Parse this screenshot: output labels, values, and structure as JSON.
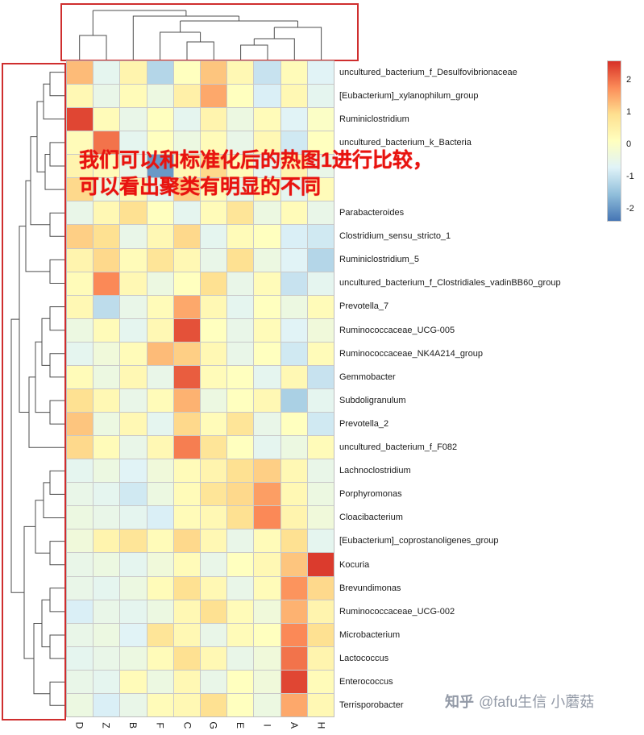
{
  "annotation": {
    "line1": "我们可以和标准化后的热图1进行比较，",
    "line2": "可以看出聚类有明显的不同",
    "color": "#e8130f"
  },
  "watermark": {
    "brand": "知乎",
    "handle": "@fafu生信 小蘑菇"
  },
  "colors": {
    "highlight_box_red": "#cf2e2e",
    "annotation_red": "#e8130f",
    "watermark_gray": "#9299a6",
    "dendrogram_line": "#4d4d4d"
  },
  "chart_data": {
    "type": "heatmap",
    "title": "",
    "clustered": {
      "rows": true,
      "columns": true
    },
    "columns": [
      "D",
      "Z",
      "B",
      "F",
      "C",
      "G",
      "E",
      "I",
      "A",
      "H"
    ],
    "rows": [
      "uncultured_bacterium_f_Desulfovibrionaceae",
      "[Eubacterium]_xylanophilum_group",
      "Ruminiclostridium",
      "uncultured_bacterium_k_Bacteria",
      "",
      "",
      "Parabacteroides",
      "Clostridium_sensu_stricto_1",
      "Ruminiclostridium_5",
      "uncultured_bacterium_f_Clostridiales_vadinBB60_group",
      "Prevotella_7",
      "Ruminococcaceae_UCG-005",
      "Ruminococcaceae_NK4A214_group",
      "Gemmobacter",
      "Subdoligranulum",
      "Prevotella_2",
      "uncultured_bacterium_f_F082",
      "Lachnoclostridium",
      "Porphyromonas",
      "Cloacibacterium",
      "[Eubacterium]_coprostanoligenes_group",
      "Kocuria",
      "Brevundimonas",
      "Ruminococcaceae_UCG-002",
      "Microbacterium",
      "Lactococcus",
      "Enterococcus",
      "Terrisporobacter"
    ],
    "values": [
      [
        1.3,
        -0.6,
        0.4,
        -1.2,
        0.1,
        1.2,
        0.3,
        -1.0,
        0.2,
        -0.7
      ],
      [
        0.3,
        -0.5,
        0.2,
        -0.4,
        0.5,
        1.5,
        0.1,
        -0.8,
        0.3,
        -0.6
      ],
      [
        2.4,
        0.2,
        -0.5,
        0.1,
        -0.6,
        0.4,
        -0.4,
        0.2,
        -0.7,
        0.0
      ],
      [
        0.2,
        2.0,
        -0.6,
        0.1,
        -0.4,
        0.2,
        -0.5,
        0.3,
        -0.9,
        0.1
      ],
      [
        0.4,
        0.2,
        -0.5,
        -2.0,
        0.3,
        1.0,
        0.2,
        -0.6,
        0.4,
        -0.5
      ],
      [
        1.0,
        -0.4,
        0.3,
        -0.6,
        1.1,
        0.2,
        -0.5,
        0.3,
        -0.6,
        0.2
      ],
      [
        -0.5,
        0.3,
        0.9,
        0.1,
        -0.6,
        0.2,
        0.8,
        -0.4,
        0.2,
        -0.5
      ],
      [
        1.1,
        0.9,
        -0.5,
        0.3,
        1.0,
        -0.6,
        0.2,
        0.1,
        -0.8,
        -0.9
      ],
      [
        0.4,
        1.0,
        0.2,
        0.8,
        0.3,
        -0.5,
        0.9,
        -0.4,
        -0.7,
        -1.2
      ],
      [
        0.2,
        1.8,
        0.3,
        -0.4,
        0.1,
        0.9,
        -0.5,
        0.2,
        -1.0,
        -0.6
      ],
      [
        0.3,
        -1.1,
        -0.5,
        0.2,
        1.5,
        0.3,
        -0.6,
        0.1,
        -0.4,
        0.2
      ],
      [
        -0.4,
        0.2,
        -0.6,
        0.3,
        2.3,
        0.1,
        -0.5,
        0.2,
        -0.7,
        -0.3
      ],
      [
        -0.6,
        -0.3,
        0.2,
        1.3,
        1.1,
        0.3,
        -0.5,
        0.1,
        -0.9,
        0.2
      ],
      [
        0.2,
        -0.4,
        0.3,
        -0.5,
        2.2,
        0.2,
        0.1,
        -0.6,
        0.3,
        -1.0
      ],
      [
        0.9,
        0.3,
        -0.5,
        0.2,
        1.4,
        -0.4,
        0.1,
        0.3,
        -1.3,
        -0.6
      ],
      [
        1.2,
        -0.4,
        0.3,
        -0.6,
        1.0,
        0.2,
        0.8,
        -0.5,
        0.1,
        -0.9
      ],
      [
        1.0,
        0.2,
        -0.5,
        0.3,
        1.9,
        0.8,
        0.1,
        -0.6,
        -0.4,
        0.2
      ],
      [
        -0.6,
        -0.4,
        -0.7,
        -0.3,
        0.2,
        0.4,
        0.9,
        1.1,
        0.3,
        -0.5
      ],
      [
        -0.5,
        -0.6,
        -0.9,
        -0.4,
        0.2,
        0.8,
        1.0,
        1.6,
        0.3,
        -0.4
      ],
      [
        -0.4,
        -0.5,
        -0.6,
        -0.8,
        0.2,
        0.3,
        0.9,
        1.8,
        0.4,
        -0.3
      ],
      [
        -0.3,
        0.4,
        0.8,
        0.2,
        1.0,
        0.3,
        -0.5,
        0.2,
        0.9,
        -0.6
      ],
      [
        -0.5,
        -0.4,
        -0.6,
        -0.3,
        0.2,
        -0.5,
        0.1,
        0.3,
        1.2,
        2.5
      ],
      [
        -0.5,
        -0.6,
        -0.4,
        0.2,
        0.9,
        0.3,
        -0.5,
        0.2,
        1.7,
        1.0
      ],
      [
        -0.8,
        -0.5,
        -0.6,
        -0.4,
        0.3,
        0.9,
        0.2,
        -0.3,
        1.4,
        0.4
      ],
      [
        -0.5,
        -0.4,
        -0.7,
        0.8,
        0.3,
        -0.5,
        0.2,
        0.1,
        1.8,
        0.9
      ],
      [
        -0.6,
        -0.5,
        -0.4,
        0.2,
        0.9,
        0.3,
        -0.5,
        -0.3,
        2.0,
        0.4
      ],
      [
        -0.5,
        -0.6,
        0.2,
        -0.4,
        0.3,
        -0.5,
        0.1,
        -0.3,
        2.4,
        0.2
      ],
      [
        -0.4,
        -0.8,
        -0.5,
        0.2,
        0.3,
        0.9,
        0.1,
        -0.4,
        1.5,
        0.3
      ]
    ],
    "colormap": [
      "#4575b4",
      "#91bfdb",
      "#e0f3f8",
      "#ffffbf",
      "#fee090",
      "#fc8d59",
      "#d73027"
    ],
    "color_domain": [
      -2.4,
      2.6
    ],
    "legend_ticks": [
      2,
      1,
      0,
      -1,
      -2
    ],
    "legend_position": "right",
    "value_range": [
      -2,
      2.5
    ]
  }
}
